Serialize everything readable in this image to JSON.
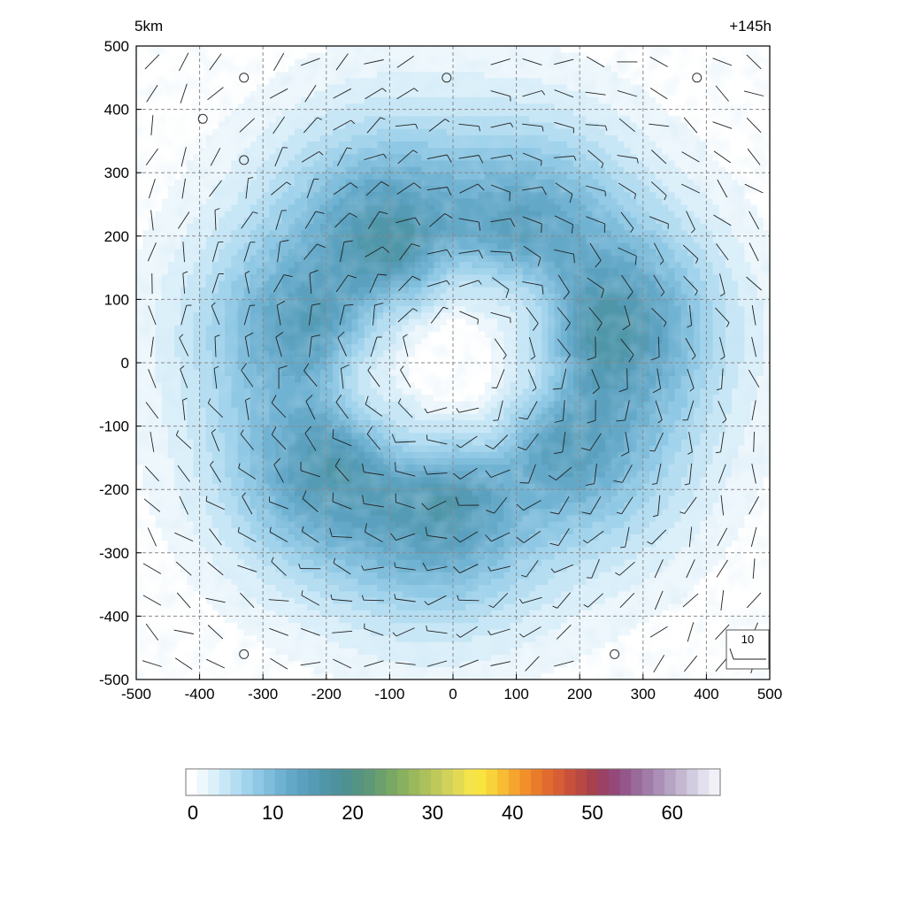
{
  "chart_data": {
    "type": "heatmap",
    "title_left": "5km",
    "title_right": "+145h",
    "xlim": [
      -500,
      500
    ],
    "ylim": [
      -500,
      500
    ],
    "x_ticks": [
      -500,
      -400,
      -300,
      -200,
      -100,
      0,
      100,
      200,
      300,
      400,
      500
    ],
    "y_ticks": [
      -500,
      -400,
      -300,
      -200,
      -100,
      0,
      100,
      200,
      300,
      400,
      500
    ],
    "x_tick_labels": [
      "-500",
      "-400",
      "-300",
      "-200",
      "-100",
      "0",
      "100",
      "200",
      "300",
      "400",
      "500"
    ],
    "y_tick_labels": [
      "-500",
      "-400",
      "-300",
      "-200",
      "-100",
      "0",
      "100",
      "200",
      "300",
      "400",
      "500"
    ],
    "grid": true,
    "field": {
      "description": "annular maximum",
      "center": [
        0,
        0
      ],
      "ring_radius": 230,
      "ring_peak": 15,
      "background": 3,
      "eye_value": 0
    },
    "wind_barbs": {
      "spacing": 50,
      "reference_label": "10",
      "reference_speed": 10,
      "calm_points": [
        [
          -330,
          450
        ],
        [
          -10,
          450
        ],
        [
          385,
          450
        ],
        [
          -395,
          385
        ],
        [
          -330,
          320
        ],
        [
          -330,
          -460
        ],
        [
          255,
          -460
        ]
      ]
    },
    "colorbar": {
      "min": 0,
      "max": 66,
      "tick_values": [
        0,
        10,
        20,
        30,
        40,
        50,
        60
      ],
      "tick_labels": [
        "0",
        "10",
        "20",
        "30",
        "40",
        "50",
        "60"
      ],
      "colors": [
        "#ffffff",
        "#eef7fc",
        "#dcf0fa",
        "#c8e7f6",
        "#b4ddf1",
        "#a1d3ec",
        "#8fc8e4",
        "#7fbddb",
        "#70b2d2",
        "#64a8c8",
        "#5ba1bf",
        "#559bb5",
        "#4f96a9",
        "#4d929c",
        "#4f9190",
        "#559383",
        "#5f9878",
        "#6ba06c",
        "#79a864",
        "#89b05f",
        "#9ab85c",
        "#acc15b",
        "#bec95a",
        "#d0d25a",
        "#e2da55",
        "#f3e44b",
        "#f8e33f",
        "#f7d23a",
        "#f7bc33",
        "#f5a42d",
        "#f18f2a",
        "#ea7b2b",
        "#e16b2e",
        "#d65d34",
        "#c8513b",
        "#b84843",
        "#a6414d",
        "#9b4165",
        "#95487a",
        "#95578b",
        "#9a6a9a",
        "#a17ca8",
        "#ab8fb6",
        "#b7a3c3",
        "#c4b8d1",
        "#d2cce0",
        "#e2e0ee",
        "#f2f0f7"
      ]
    }
  }
}
